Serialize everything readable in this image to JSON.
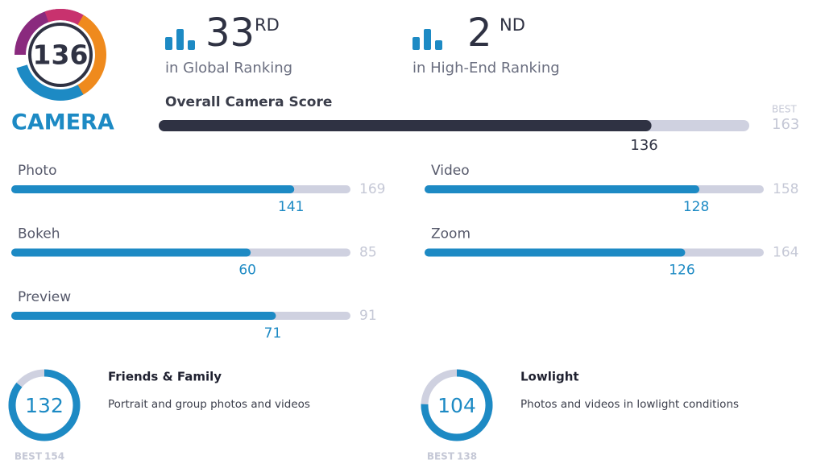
{
  "badge": {
    "score": 136,
    "label": "CAMERA"
  },
  "rankings": [
    {
      "rank": "33",
      "suffix": "RD",
      "label": "in Global Ranking"
    },
    {
      "rank": "2",
      "suffix": "ND",
      "label": "in High-End Ranking"
    }
  ],
  "overall": {
    "label": "Overall Camera Score",
    "score": 136,
    "best_label": "BEST",
    "best": 163
  },
  "subscores": [
    {
      "label": "Photo",
      "score": 141,
      "best": 169
    },
    {
      "label": "Video",
      "score": 128,
      "best": 158
    },
    {
      "label": "Bokeh",
      "score": 60,
      "best": 85
    },
    {
      "label": "Zoom",
      "score": 126,
      "best": 164
    },
    {
      "label": "Preview",
      "score": 71,
      "best": 91
    }
  ],
  "use_cases": [
    {
      "title": "Friends & Family",
      "description": "Portrait and group photos and videos",
      "score": 132,
      "best_label": "BEST",
      "best": 154
    },
    {
      "title": "Lowlight",
      "description": "Photos and videos in lowlight conditions",
      "score": 104,
      "best_label": "BEST",
      "best": 138
    }
  ]
}
